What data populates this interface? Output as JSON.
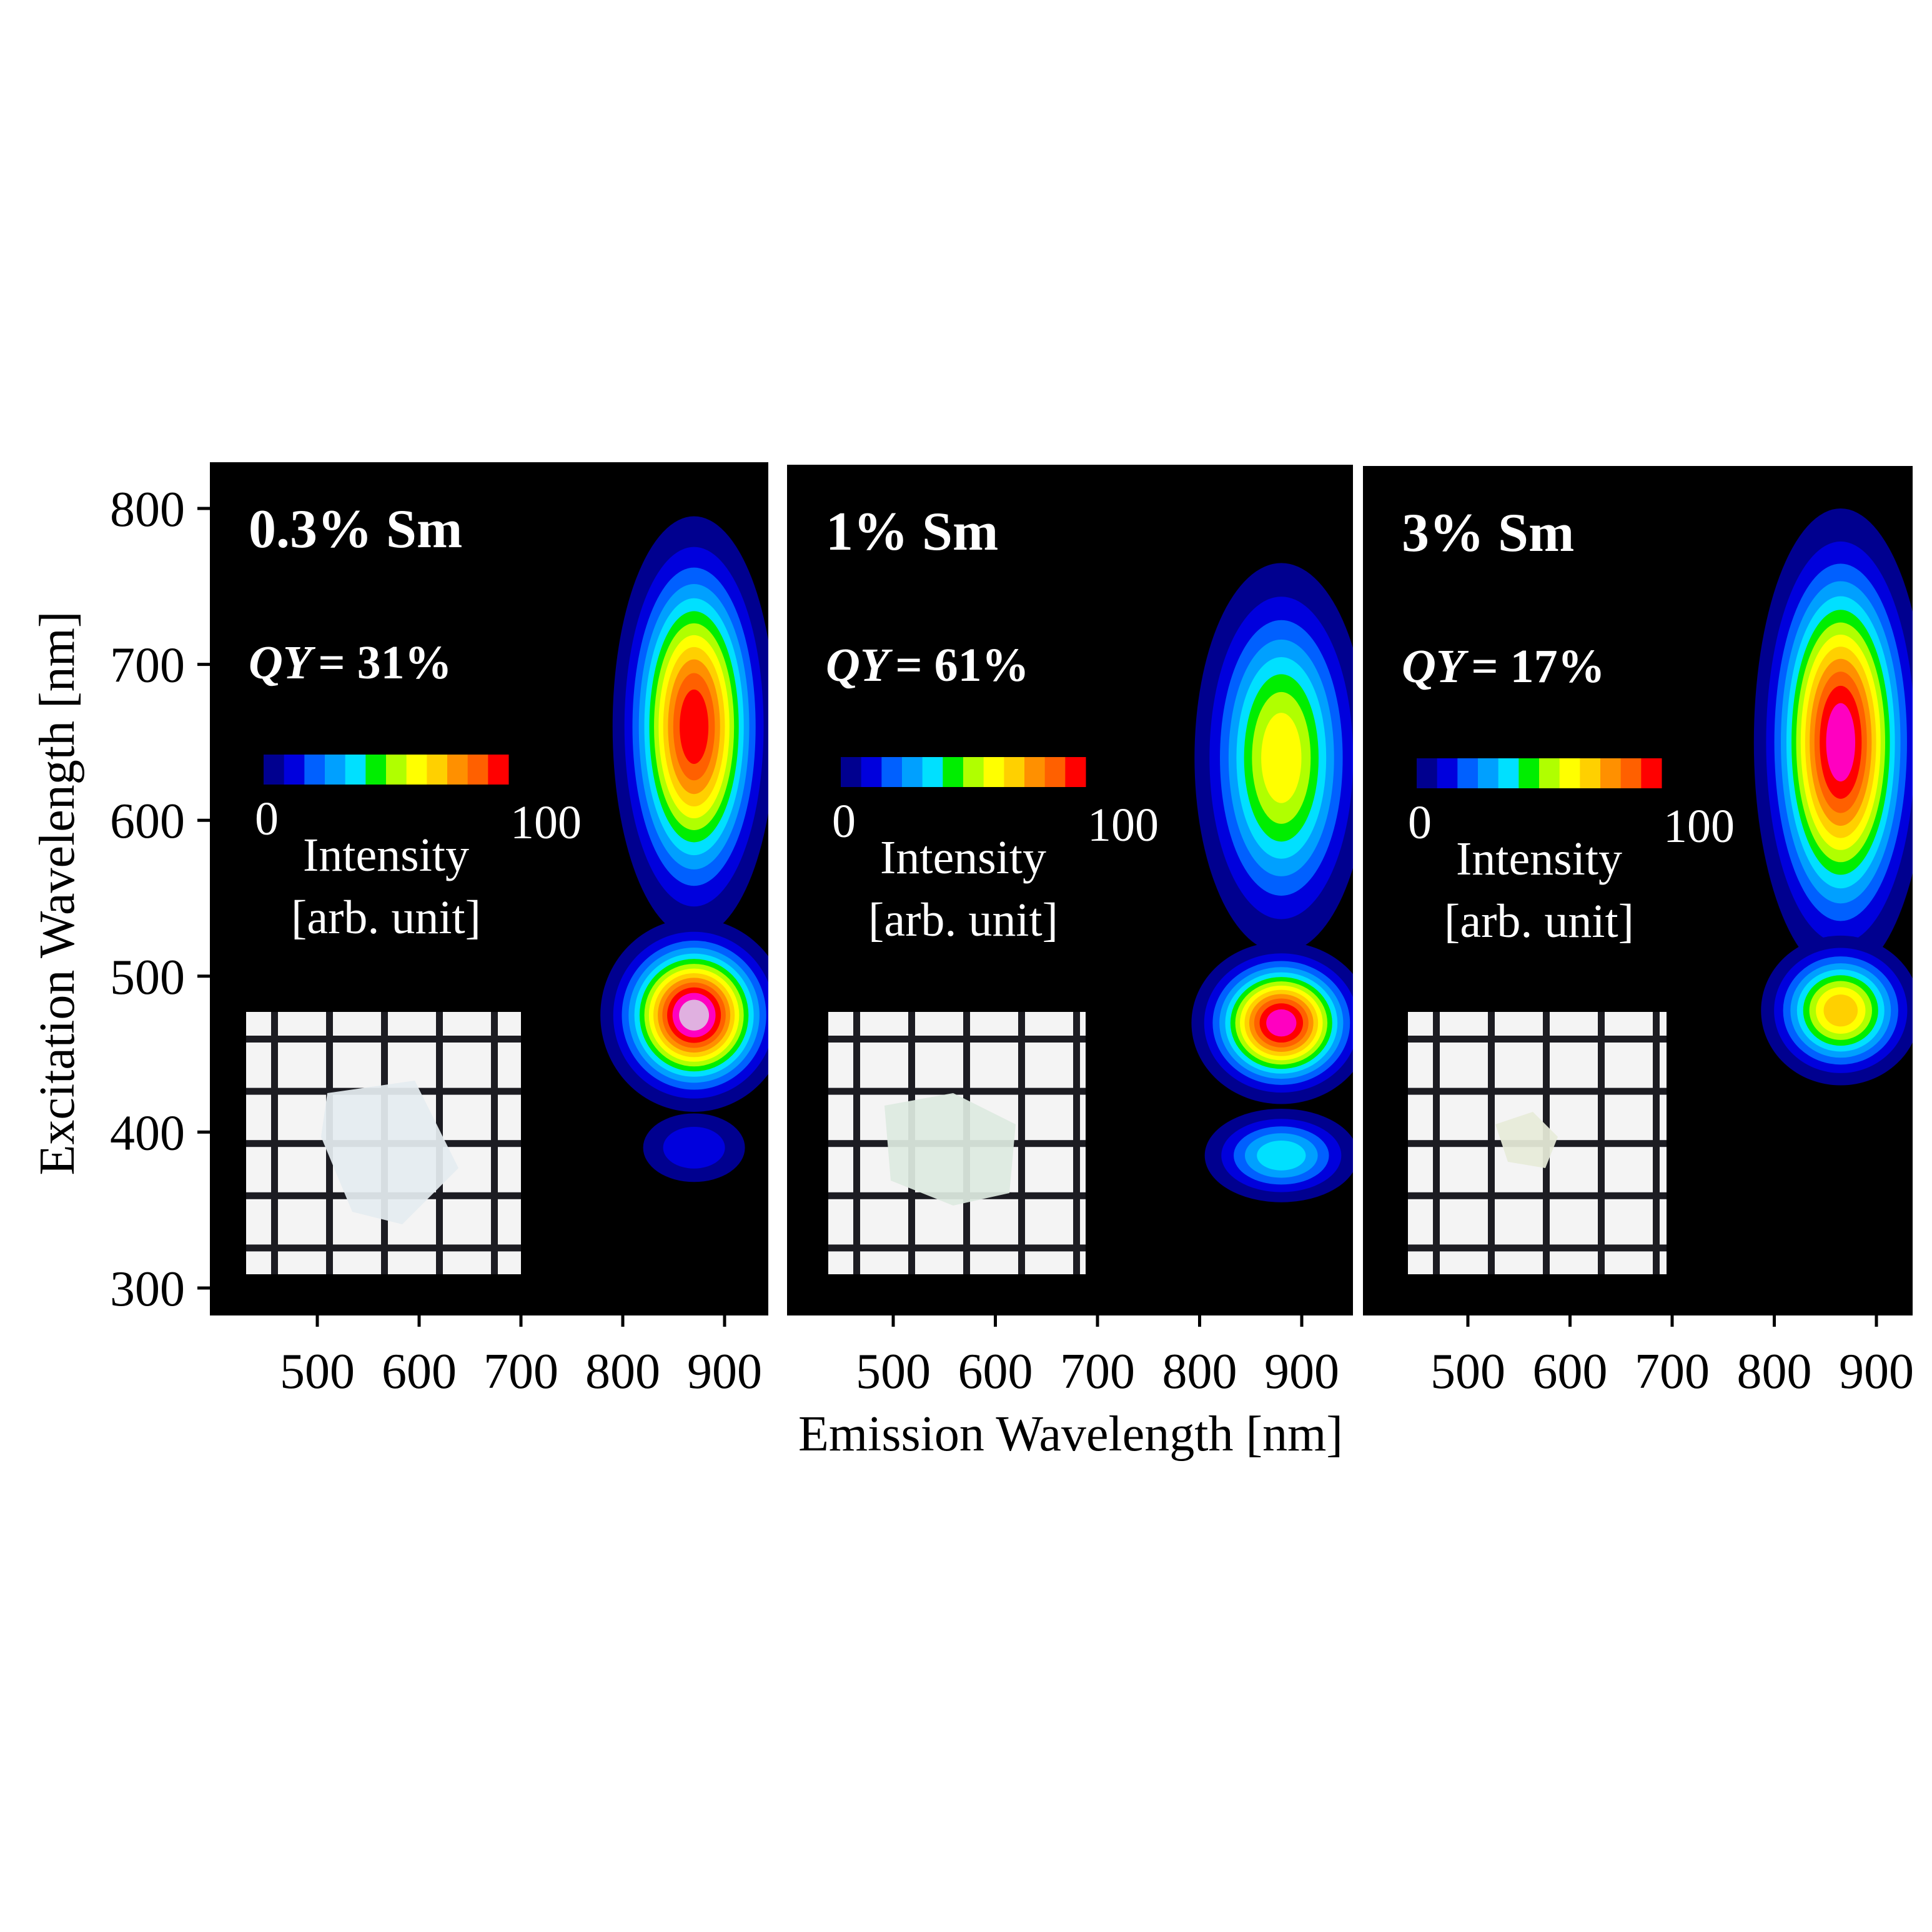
{
  "chart_data": {
    "type": "heatmap",
    "xlabel": "Emission Wavelength [nm]",
    "ylabel": "Excitation Wavelength [nm]",
    "xlim": [
      395,
      943
    ],
    "ylim": [
      272,
      830
    ],
    "x_ticks": [
      500,
      600,
      700,
      800,
      900
    ],
    "y_ticks": [
      300,
      400,
      500,
      600,
      700,
      800
    ],
    "colorbar": {
      "min_label": "0",
      "max_label": "100",
      "label_line1": "Intensity",
      "label_line2": "[arb. unit]",
      "colors": [
        "#00008f",
        "#0000dd",
        "#0060ff",
        "#00a0ff",
        "#00e0ff",
        "#00ee00",
        "#b0ff00",
        "#ffff00",
        "#ffd000",
        "#ff9000",
        "#ff6000",
        "#ff0000"
      ],
      "peak_color": "#ff00c0",
      "peak_center_color": "#e0b0e0"
    },
    "panels": [
      {
        "title": "0.3% Sm",
        "qy_label": "QY",
        "qy_value": "= 31%",
        "blobs": [
          {
            "em": 870,
            "ex": 660,
            "em_half": 80,
            "ex_half": 135,
            "peak_level": 12
          },
          {
            "em": 870,
            "ex": 475,
            "em_half": 92,
            "ex_half": 62,
            "peak_level": 14
          },
          {
            "em": 870,
            "ex": 390,
            "em_half": 50,
            "ex_half": 22,
            "peak_level": 2
          }
        ]
      },
      {
        "title": "1% Sm",
        "qy_label": "QY",
        "qy_value": "= 61%",
        "blobs": [
          {
            "em": 880,
            "ex": 640,
            "em_half": 85,
            "ex_half": 125,
            "peak_level": 8
          },
          {
            "em": 880,
            "ex": 470,
            "em_half": 88,
            "ex_half": 52,
            "peak_level": 13
          },
          {
            "em": 880,
            "ex": 385,
            "em_half": 75,
            "ex_half": 30,
            "peak_level": 5
          }
        ]
      },
      {
        "title": "3% Sm",
        "qy_label": "QY",
        "qy_value": "= 17%",
        "blobs": [
          {
            "em": 865,
            "ex": 650,
            "em_half": 85,
            "ex_half": 150,
            "peak_level": 13
          },
          {
            "em": 865,
            "ex": 478,
            "em_half": 78,
            "ex_half": 48,
            "peak_level": 9
          }
        ]
      }
    ]
  }
}
